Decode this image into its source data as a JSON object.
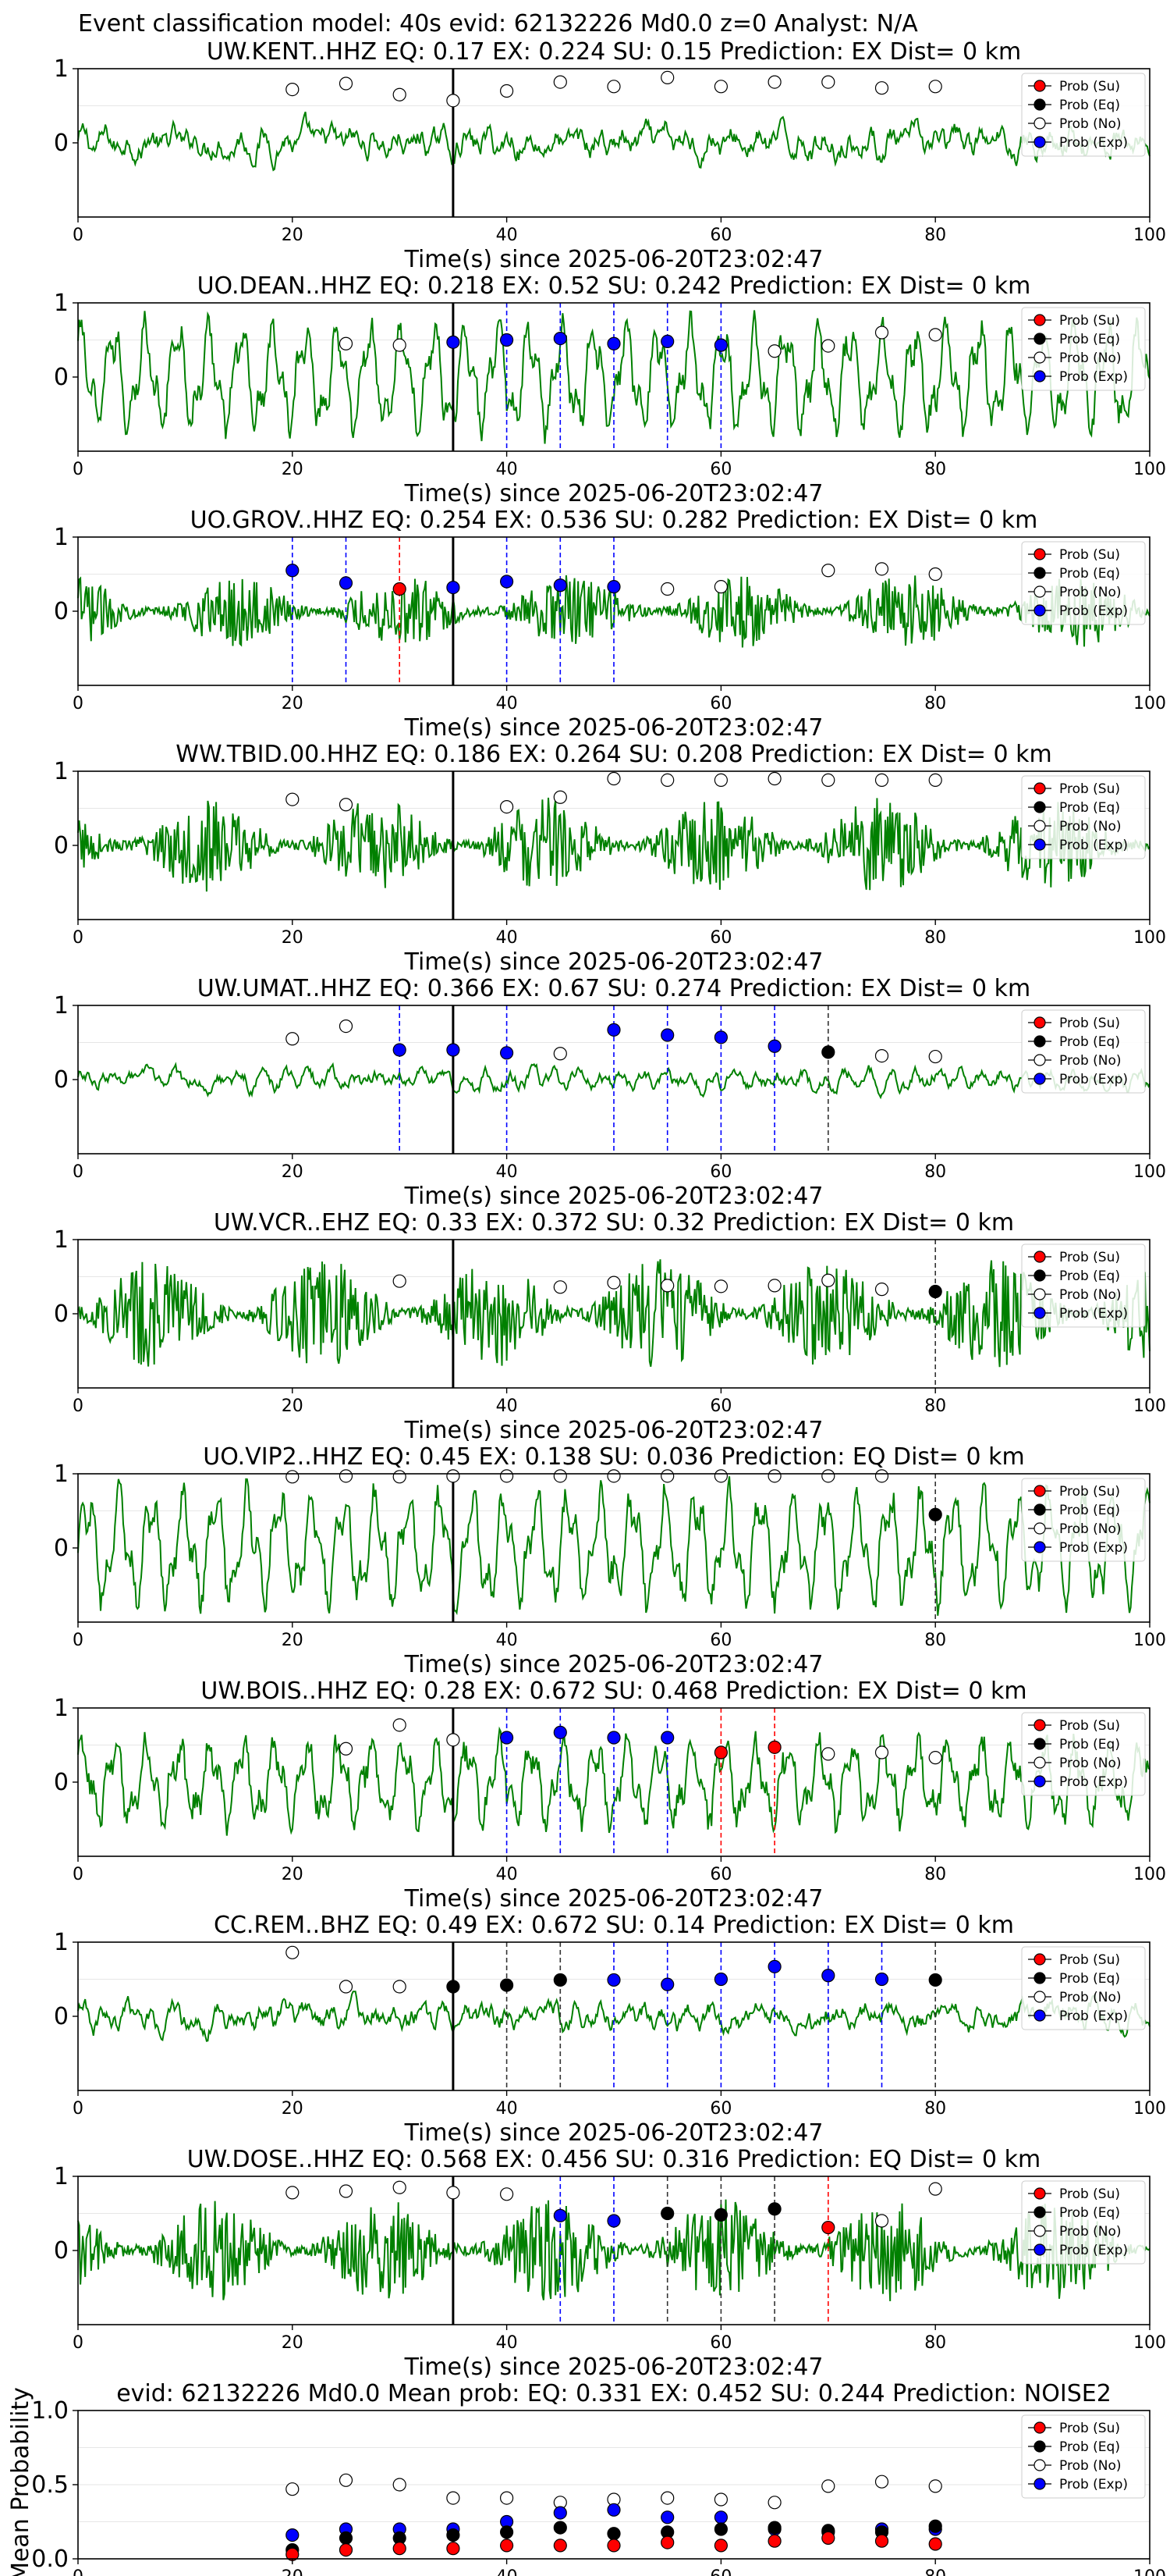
{
  "figure_title": "Event classification model: 40s evid: 62132226 Md0.0 z=0 Analyst: N/A",
  "legend_labels": [
    "Prob (Su)",
    "Prob (Eq)",
    "Prob (No)",
    "Prob (Exp)"
  ],
  "colors": {
    "Su": "#ff0000",
    "Eq": "#000000",
    "No": "#ffffff",
    "Exp": "#0000ff",
    "trace": "#008000",
    "Su_line": "#ff0000",
    "Eq_line": "#333333",
    "Exp_line": "#0000ff"
  },
  "chart_data": [
    {
      "type": "scatter",
      "title": "UW.KENT..HHZ   EQ: 0.17  EX: 0.224  SU: 0.15   Prediction: EX    Dist= 0 km",
      "xlabel": "Time(s) since 2025-06-20T23:02:47",
      "xlim": [
        0,
        100
      ],
      "ylim": [
        -1,
        1
      ],
      "xticks": [
        0,
        20,
        40,
        60,
        80,
        100
      ],
      "yticks": [
        0,
        1
      ],
      "trace": {
        "kind": "quiet",
        "amp": 0.25
      },
      "vline_x": 35,
      "points": [
        {
          "x": 20,
          "y": 0.72,
          "cls": "No"
        },
        {
          "x": 25,
          "y": 0.8,
          "cls": "No"
        },
        {
          "x": 30,
          "y": 0.65,
          "cls": "No"
        },
        {
          "x": 35,
          "y": 0.57,
          "cls": "No"
        },
        {
          "x": 40,
          "y": 0.7,
          "cls": "No"
        },
        {
          "x": 45,
          "y": 0.82,
          "cls": "No"
        },
        {
          "x": 50,
          "y": 0.76,
          "cls": "No"
        },
        {
          "x": 55,
          "y": 0.88,
          "cls": "No"
        },
        {
          "x": 60,
          "y": 0.76,
          "cls": "No"
        },
        {
          "x": 65,
          "y": 0.82,
          "cls": "No"
        },
        {
          "x": 70,
          "y": 0.82,
          "cls": "No"
        },
        {
          "x": 75,
          "y": 0.74,
          "cls": "No"
        },
        {
          "x": 80,
          "y": 0.76,
          "cls": "No"
        }
      ]
    },
    {
      "type": "scatter",
      "title": "UO.DEAN..HHZ   EQ: 0.218  EX: 0.52  SU: 0.242   Prediction: EX    Dist= 0 km",
      "xlabel": "Time(s) since 2025-06-20T23:02:47",
      "xlim": [
        0,
        100
      ],
      "ylim": [
        -1,
        1
      ],
      "xticks": [
        0,
        20,
        40,
        60,
        80,
        100
      ],
      "yticks": [
        0,
        1
      ],
      "trace": {
        "kind": "wave",
        "amp": 0.7
      },
      "vline_x": 35,
      "points": [
        {
          "x": 25,
          "y": 0.45,
          "cls": "No"
        },
        {
          "x": 30,
          "y": 0.43,
          "cls": "No"
        },
        {
          "x": 35,
          "y": 0.47,
          "cls": "Exp"
        },
        {
          "x": 40,
          "y": 0.5,
          "cls": "Exp"
        },
        {
          "x": 45,
          "y": 0.52,
          "cls": "Exp"
        },
        {
          "x": 50,
          "y": 0.45,
          "cls": "Exp"
        },
        {
          "x": 55,
          "y": 0.48,
          "cls": "Exp"
        },
        {
          "x": 60,
          "y": 0.43,
          "cls": "Exp"
        },
        {
          "x": 65,
          "y": 0.35,
          "cls": "No"
        },
        {
          "x": 70,
          "y": 0.42,
          "cls": "No"
        },
        {
          "x": 75,
          "y": 0.6,
          "cls": "No"
        },
        {
          "x": 80,
          "y": 0.57,
          "cls": "No"
        }
      ]
    },
    {
      "type": "scatter",
      "title": "UO.GROV..HHZ   EQ: 0.254  EX: 0.536  SU: 0.282   Prediction: EX    Dist= 0 km",
      "xlabel": "Time(s) since 2025-06-20T23:02:47",
      "xlim": [
        0,
        100
      ],
      "ylim": [
        -1,
        1
      ],
      "xticks": [
        0,
        20,
        40,
        60,
        80,
        100
      ],
      "yticks": [
        0,
        1
      ],
      "trace": {
        "kind": "noise",
        "amp": 0.5
      },
      "vline_x": 35,
      "points": [
        {
          "x": 20,
          "y": 0.55,
          "cls": "Exp"
        },
        {
          "x": 25,
          "y": 0.38,
          "cls": "Exp"
        },
        {
          "x": 30,
          "y": 0.3,
          "cls": "Su"
        },
        {
          "x": 35,
          "y": 0.32,
          "cls": "Exp"
        },
        {
          "x": 40,
          "y": 0.4,
          "cls": "Exp"
        },
        {
          "x": 45,
          "y": 0.35,
          "cls": "Exp"
        },
        {
          "x": 50,
          "y": 0.33,
          "cls": "Exp"
        },
        {
          "x": 55,
          "y": 0.3,
          "cls": "No"
        },
        {
          "x": 60,
          "y": 0.33,
          "cls": "No"
        },
        {
          "x": 70,
          "y": 0.55,
          "cls": "No"
        },
        {
          "x": 75,
          "y": 0.57,
          "cls": "No"
        },
        {
          "x": 80,
          "y": 0.5,
          "cls": "No"
        }
      ]
    },
    {
      "type": "scatter",
      "title": "WW.TBID.00.HHZ   EQ: 0.186  EX: 0.264  SU: 0.208   Prediction: EX    Dist= 0 km",
      "xlabel": "Time(s) since 2025-06-20T23:02:47",
      "xlim": [
        0,
        100
      ],
      "ylim": [
        -1,
        1
      ],
      "xticks": [
        0,
        20,
        40,
        60,
        80,
        100
      ],
      "yticks": [
        0,
        1
      ],
      "trace": {
        "kind": "noise",
        "amp": 0.65
      },
      "vline_x": 35,
      "points": [
        {
          "x": 20,
          "y": 0.62,
          "cls": "No"
        },
        {
          "x": 25,
          "y": 0.55,
          "cls": "No"
        },
        {
          "x": 40,
          "y": 0.52,
          "cls": "No"
        },
        {
          "x": 45,
          "y": 0.65,
          "cls": "No"
        },
        {
          "x": 50,
          "y": 0.9,
          "cls": "No"
        },
        {
          "x": 55,
          "y": 0.88,
          "cls": "No"
        },
        {
          "x": 60,
          "y": 0.88,
          "cls": "No"
        },
        {
          "x": 65,
          "y": 0.9,
          "cls": "No"
        },
        {
          "x": 70,
          "y": 0.88,
          "cls": "No"
        },
        {
          "x": 75,
          "y": 0.88,
          "cls": "No"
        },
        {
          "x": 80,
          "y": 0.88,
          "cls": "No"
        }
      ]
    },
    {
      "type": "scatter",
      "title": "UW.UMAT..HHZ   EQ: 0.366  EX: 0.67  SU: 0.274   Prediction: EX    Dist= 0 km",
      "xlabel": "Time(s) since 2025-06-20T23:02:47",
      "xlim": [
        0,
        100
      ],
      "ylim": [
        -1,
        1
      ],
      "xticks": [
        0,
        20,
        40,
        60,
        80,
        100
      ],
      "yticks": [
        0,
        1
      ],
      "trace": {
        "kind": "quiet",
        "amp": 0.15
      },
      "vline_x": 35,
      "points": [
        {
          "x": 20,
          "y": 0.55,
          "cls": "No"
        },
        {
          "x": 25,
          "y": 0.72,
          "cls": "No"
        },
        {
          "x": 30,
          "y": 0.4,
          "cls": "Exp"
        },
        {
          "x": 35,
          "y": 0.4,
          "cls": "Exp"
        },
        {
          "x": 40,
          "y": 0.36,
          "cls": "Exp"
        },
        {
          "x": 45,
          "y": 0.35,
          "cls": "No"
        },
        {
          "x": 50,
          "y": 0.67,
          "cls": "Exp"
        },
        {
          "x": 55,
          "y": 0.6,
          "cls": "Exp"
        },
        {
          "x": 60,
          "y": 0.57,
          "cls": "Exp"
        },
        {
          "x": 65,
          "y": 0.45,
          "cls": "Exp"
        },
        {
          "x": 70,
          "y": 0.37,
          "cls": "Eq"
        },
        {
          "x": 75,
          "y": 0.32,
          "cls": "No"
        },
        {
          "x": 80,
          "y": 0.31,
          "cls": "No"
        }
      ]
    },
    {
      "type": "scatter",
      "title": "UW.VCR..EHZ   EQ: 0.33  EX: 0.372  SU: 0.32   Prediction: EX    Dist= 0 km",
      "xlabel": "Time(s) since 2025-06-20T23:02:47",
      "xlim": [
        0,
        100
      ],
      "ylim": [
        -1,
        1
      ],
      "xticks": [
        0,
        20,
        40,
        60,
        80,
        100
      ],
      "yticks": [
        0,
        1
      ],
      "trace": {
        "kind": "noise",
        "amp": 0.75
      },
      "vline_x": 35,
      "points": [
        {
          "x": 30,
          "y": 0.44,
          "cls": "No"
        },
        {
          "x": 45,
          "y": 0.36,
          "cls": "No"
        },
        {
          "x": 50,
          "y": 0.42,
          "cls": "No"
        },
        {
          "x": 55,
          "y": 0.38,
          "cls": "No"
        },
        {
          "x": 60,
          "y": 0.37,
          "cls": "No"
        },
        {
          "x": 65,
          "y": 0.38,
          "cls": "No"
        },
        {
          "x": 70,
          "y": 0.45,
          "cls": "No"
        },
        {
          "x": 75,
          "y": 0.33,
          "cls": "No"
        },
        {
          "x": 80,
          "y": 0.3,
          "cls": "Eq"
        }
      ]
    },
    {
      "type": "scatter",
      "title": "UO.VIP2..HHZ   EQ: 0.45  EX: 0.138  SU: 0.036   Prediction: EQ    Dist= 0 km",
      "xlabel": "Time(s) since 2025-06-20T23:02:47",
      "xlim": [
        0,
        100
      ],
      "ylim": [
        -1,
        1
      ],
      "xticks": [
        0,
        20,
        40,
        60,
        80,
        100
      ],
      "yticks": [
        0,
        1
      ],
      "trace": {
        "kind": "wave",
        "amp": 0.75
      },
      "vline_x": 35,
      "points": [
        {
          "x": 20,
          "y": 0.96,
          "cls": "No"
        },
        {
          "x": 25,
          "y": 0.97,
          "cls": "No"
        },
        {
          "x": 30,
          "y": 0.96,
          "cls": "No"
        },
        {
          "x": 35,
          "y": 0.97,
          "cls": "No"
        },
        {
          "x": 40,
          "y": 0.97,
          "cls": "No"
        },
        {
          "x": 45,
          "y": 0.97,
          "cls": "No"
        },
        {
          "x": 50,
          "y": 0.97,
          "cls": "No"
        },
        {
          "x": 55,
          "y": 0.97,
          "cls": "No"
        },
        {
          "x": 60,
          "y": 0.97,
          "cls": "No"
        },
        {
          "x": 65,
          "y": 0.97,
          "cls": "No"
        },
        {
          "x": 70,
          "y": 0.97,
          "cls": "No"
        },
        {
          "x": 75,
          "y": 0.97,
          "cls": "No"
        },
        {
          "x": 80,
          "y": 0.45,
          "cls": "Eq"
        }
      ]
    },
    {
      "type": "scatter",
      "title": "UW.BOIS..HHZ   EQ: 0.28  EX: 0.672  SU: 0.468   Prediction: EX    Dist= 0 km",
      "xlabel": "Time(s) since 2025-06-20T23:02:47",
      "xlim": [
        0,
        100
      ],
      "ylim": [
        -1,
        1
      ],
      "xticks": [
        0,
        20,
        40,
        60,
        80,
        100
      ],
      "yticks": [
        0,
        1
      ],
      "trace": {
        "kind": "wave",
        "amp": 0.55
      },
      "vline_x": 35,
      "points": [
        {
          "x": 25,
          "y": 0.45,
          "cls": "No"
        },
        {
          "x": 30,
          "y": 0.77,
          "cls": "No"
        },
        {
          "x": 35,
          "y": 0.57,
          "cls": "No"
        },
        {
          "x": 40,
          "y": 0.6,
          "cls": "Exp"
        },
        {
          "x": 45,
          "y": 0.67,
          "cls": "Exp"
        },
        {
          "x": 50,
          "y": 0.6,
          "cls": "Exp"
        },
        {
          "x": 55,
          "y": 0.6,
          "cls": "Exp"
        },
        {
          "x": 60,
          "y": 0.4,
          "cls": "Su"
        },
        {
          "x": 65,
          "y": 0.47,
          "cls": "Su"
        },
        {
          "x": 70,
          "y": 0.38,
          "cls": "No"
        },
        {
          "x": 75,
          "y": 0.4,
          "cls": "No"
        },
        {
          "x": 80,
          "y": 0.33,
          "cls": "No"
        }
      ]
    },
    {
      "type": "scatter",
      "title": "CC.REM..BHZ   EQ: 0.49  EX: 0.672  SU: 0.14   Prediction: EX    Dist= 0 km",
      "xlabel": "Time(s) since 2025-06-20T23:02:47",
      "xlim": [
        0,
        100
      ],
      "ylim": [
        -1,
        1
      ],
      "xticks": [
        0,
        20,
        40,
        60,
        80,
        100
      ],
      "yticks": [
        0,
        1
      ],
      "trace": {
        "kind": "quiet",
        "amp": 0.22
      },
      "vline_x": 35,
      "points": [
        {
          "x": 20,
          "y": 0.86,
          "cls": "No"
        },
        {
          "x": 25,
          "y": 0.4,
          "cls": "No"
        },
        {
          "x": 30,
          "y": 0.4,
          "cls": "No"
        },
        {
          "x": 35,
          "y": 0.4,
          "cls": "Eq"
        },
        {
          "x": 40,
          "y": 0.42,
          "cls": "Eq"
        },
        {
          "x": 45,
          "y": 0.49,
          "cls": "Eq"
        },
        {
          "x": 50,
          "y": 0.49,
          "cls": "Exp"
        },
        {
          "x": 55,
          "y": 0.43,
          "cls": "Exp"
        },
        {
          "x": 60,
          "y": 0.5,
          "cls": "Exp"
        },
        {
          "x": 65,
          "y": 0.67,
          "cls": "Exp"
        },
        {
          "x": 70,
          "y": 0.55,
          "cls": "Exp"
        },
        {
          "x": 75,
          "y": 0.5,
          "cls": "Exp"
        },
        {
          "x": 80,
          "y": 0.49,
          "cls": "Eq"
        }
      ]
    },
    {
      "type": "scatter",
      "title": "UW.DOSE..HHZ   EQ: 0.568  EX: 0.456  SU: 0.316   Prediction: EQ    Dist= 0 km",
      "xlabel": "Time(s) since 2025-06-20T23:02:47",
      "xlim": [
        0,
        100
      ],
      "ylim": [
        -1,
        1
      ],
      "xticks": [
        0,
        20,
        40,
        60,
        80,
        100
      ],
      "yticks": [
        0,
        1
      ],
      "trace": {
        "kind": "noise",
        "amp": 0.7
      },
      "vline_x": 35,
      "points": [
        {
          "x": 20,
          "y": 0.78,
          "cls": "No"
        },
        {
          "x": 25,
          "y": 0.8,
          "cls": "No"
        },
        {
          "x": 30,
          "y": 0.85,
          "cls": "No"
        },
        {
          "x": 35,
          "y": 0.78,
          "cls": "No"
        },
        {
          "x": 40,
          "y": 0.76,
          "cls": "No"
        },
        {
          "x": 45,
          "y": 0.47,
          "cls": "Exp"
        },
        {
          "x": 50,
          "y": 0.4,
          "cls": "Exp"
        },
        {
          "x": 55,
          "y": 0.5,
          "cls": "Eq"
        },
        {
          "x": 60,
          "y": 0.48,
          "cls": "Eq"
        },
        {
          "x": 65,
          "y": 0.56,
          "cls": "Eq"
        },
        {
          "x": 70,
          "y": 0.31,
          "cls": "Su"
        },
        {
          "x": 75,
          "y": 0.4,
          "cls": "No"
        },
        {
          "x": 80,
          "y": 0.83,
          "cls": "No"
        }
      ]
    },
    {
      "type": "scatter",
      "title": "evid: 62132226  Md0.0    Mean prob:   EQ: 0.331  EX: 0.452  SU: 0.244   Prediction: NOISE2",
      "xlabel": "",
      "ylabel": "Mean Probability",
      "xlim": [
        0,
        100
      ],
      "ylim": [
        0,
        1
      ],
      "xticks": [
        0,
        20,
        40,
        60,
        80,
        100
      ],
      "yticks": [
        "0.0",
        "0.5",
        "1.0"
      ],
      "x": [
        20,
        25,
        30,
        35,
        40,
        45,
        50,
        55,
        60,
        65,
        70,
        75,
        80
      ],
      "series": [
        {
          "cls": "No",
          "values": [
            0.47,
            0.53,
            0.5,
            0.41,
            0.41,
            0.38,
            0.4,
            0.41,
            0.4,
            0.38,
            0.49,
            0.52,
            0.49
          ]
        },
        {
          "cls": "Exp",
          "values": [
            0.16,
            0.2,
            0.2,
            0.2,
            0.25,
            0.31,
            0.33,
            0.28,
            0.28,
            0.2,
            0.18,
            0.2,
            0.2
          ]
        },
        {
          "cls": "Eq",
          "values": [
            0.06,
            0.14,
            0.14,
            0.16,
            0.18,
            0.21,
            0.17,
            0.18,
            0.2,
            0.21,
            0.19,
            0.18,
            0.22
          ]
        },
        {
          "cls": "Su",
          "values": [
            0.03,
            0.06,
            0.07,
            0.07,
            0.09,
            0.09,
            0.09,
            0.11,
            0.09,
            0.12,
            0.14,
            0.12,
            0.1
          ]
        }
      ]
    }
  ]
}
